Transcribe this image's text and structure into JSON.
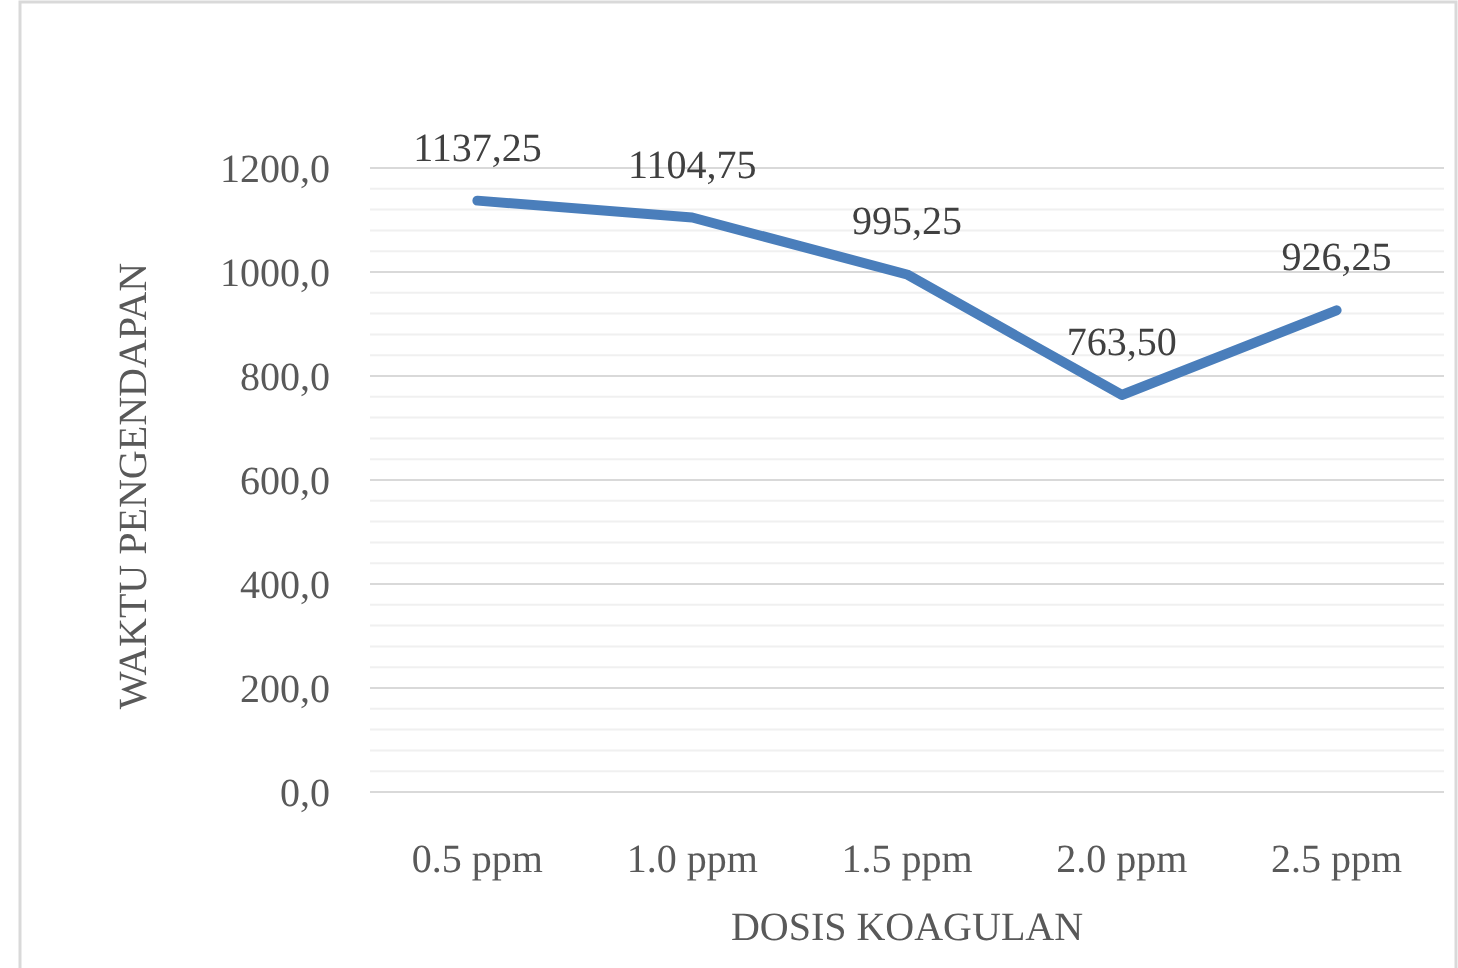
{
  "chart_data": {
    "type": "line",
    "xlabel": "DOSIS KOAGULAN",
    "ylabel": "WAKTU PENGENDAPAN",
    "categories": [
      "0.5 ppm",
      "1.0 ppm",
      "1.5 ppm",
      "2.0 ppm",
      "2.5 ppm"
    ],
    "series": [
      {
        "color": "#4a7ebb",
        "values": [
          1137.25,
          1104.75,
          995.25,
          763.5,
          926.25
        ],
        "value_labels": [
          "1137,25",
          "1104,75",
          "995,25",
          "763,50",
          "926,25"
        ]
      }
    ],
    "ylim": [
      0,
      1200
    ],
    "yticks": [
      {
        "value": 0,
        "label": "0,0"
      },
      {
        "value": 40,
        "label": null
      },
      {
        "value": 80,
        "label": null
      },
      {
        "value": 120,
        "label": null
      },
      {
        "value": 160,
        "label": null
      },
      {
        "value": 200,
        "label": "200,0"
      },
      {
        "value": 240,
        "label": null
      },
      {
        "value": 280,
        "label": null
      },
      {
        "value": 320,
        "label": null
      },
      {
        "value": 360,
        "label": null
      },
      {
        "value": 400,
        "label": "400,0"
      },
      {
        "value": 440,
        "label": null
      },
      {
        "value": 480,
        "label": null
      },
      {
        "value": 520,
        "label": null
      },
      {
        "value": 560,
        "label": null
      },
      {
        "value": 600,
        "label": "600,0"
      },
      {
        "value": 640,
        "label": null
      },
      {
        "value": 680,
        "label": null
      },
      {
        "value": 720,
        "label": null
      },
      {
        "value": 760,
        "label": null
      },
      {
        "value": 800,
        "label": "800,0"
      },
      {
        "value": 840,
        "label": null
      },
      {
        "value": 880,
        "label": null
      },
      {
        "value": 920,
        "label": null
      },
      {
        "value": 960,
        "label": null
      },
      {
        "value": 1000,
        "label": "1000,0"
      },
      {
        "value": 1040,
        "label": null
      },
      {
        "value": 1080,
        "label": null
      },
      {
        "value": 1120,
        "label": null
      },
      {
        "value": 1160,
        "label": null
      },
      {
        "value": 1200,
        "label": "1200,0"
      }
    ],
    "grid": "y",
    "marker": "none",
    "line_style": "solid"
  }
}
